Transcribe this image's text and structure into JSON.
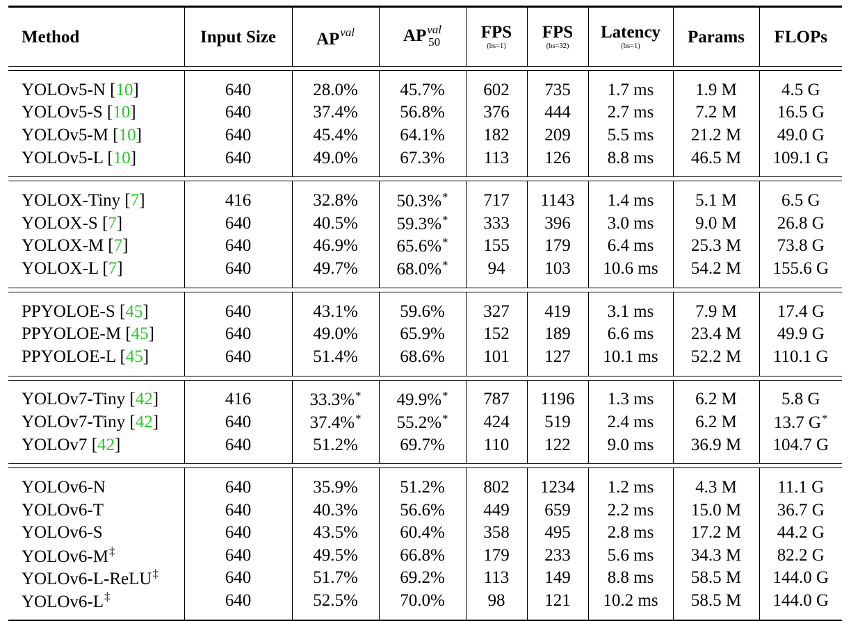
{
  "header": {
    "method": "Method",
    "input_size": "Input Size",
    "ap": "AP",
    "ap_sup": "val",
    "ap50": "AP",
    "ap50_sup": "val",
    "ap50_sub": "50",
    "fps1": "FPS",
    "fps1_sub": "(bs=1)",
    "fps32": "FPS",
    "fps32_sub": "(bs=32)",
    "latency": "Latency",
    "latency_sub": "(bs=1)",
    "params": "Params",
    "flops": "FLOPs"
  },
  "groups": [
    {
      "rows": [
        {
          "name": "YOLOv5-N",
          "ref": "10",
          "mark": "",
          "input": "640",
          "ap": "28.0%",
          "ap_star": "",
          "ap50": "45.7%",
          "ap50_star": "",
          "fps1": "602",
          "fps32": "735",
          "latency": "1.7 ms",
          "params": "1.9 M",
          "flops": "4.5 G",
          "flops_star": ""
        },
        {
          "name": "YOLOv5-S",
          "ref": "10",
          "mark": "",
          "input": "640",
          "ap": "37.4%",
          "ap_star": "",
          "ap50": "56.8%",
          "ap50_star": "",
          "fps1": "376",
          "fps32": "444",
          "latency": "2.7 ms",
          "params": "7.2 M",
          "flops": "16.5 G",
          "flops_star": ""
        },
        {
          "name": "YOLOv5-M",
          "ref": "10",
          "mark": "",
          "input": "640",
          "ap": "45.4%",
          "ap_star": "",
          "ap50": "64.1%",
          "ap50_star": "",
          "fps1": "182",
          "fps32": "209",
          "latency": "5.5 ms",
          "params": "21.2 M",
          "flops": "49.0 G",
          "flops_star": ""
        },
        {
          "name": "YOLOv5-L",
          "ref": "10",
          "mark": "",
          "input": "640",
          "ap": "49.0%",
          "ap_star": "",
          "ap50": "67.3%",
          "ap50_star": "",
          "fps1": "113",
          "fps32": "126",
          "latency": "8.8 ms",
          "params": "46.5 M",
          "flops": "109.1 G",
          "flops_star": ""
        }
      ]
    },
    {
      "rows": [
        {
          "name": "YOLOX-Tiny",
          "ref": "7",
          "mark": "",
          "input": "416",
          "ap": "32.8%",
          "ap_star": "",
          "ap50": "50.3%",
          "ap50_star": "*",
          "fps1": "717",
          "fps32": "1143",
          "latency": "1.4 ms",
          "params": "5.1 M",
          "flops": "6.5 G",
          "flops_star": ""
        },
        {
          "name": "YOLOX-S",
          "ref": "7",
          "mark": "",
          "input": "640",
          "ap": "40.5%",
          "ap_star": "",
          "ap50": "59.3%",
          "ap50_star": "*",
          "fps1": "333",
          "fps32": "396",
          "latency": "3.0 ms",
          "params": "9.0 M",
          "flops": "26.8 G",
          "flops_star": ""
        },
        {
          "name": "YOLOX-M",
          "ref": "7",
          "mark": "",
          "input": "640",
          "ap": "46.9%",
          "ap_star": "",
          "ap50": "65.6%",
          "ap50_star": "*",
          "fps1": "155",
          "fps32": "179",
          "latency": "6.4 ms",
          "params": "25.3 M",
          "flops": "73.8 G",
          "flops_star": ""
        },
        {
          "name": "YOLOX-L",
          "ref": "7",
          "mark": "",
          "input": "640",
          "ap": "49.7%",
          "ap_star": "",
          "ap50": "68.0%",
          "ap50_star": "*",
          "fps1": "94",
          "fps32": "103",
          "latency": "10.6 ms",
          "params": "54.2 M",
          "flops": "155.6 G",
          "flops_star": ""
        }
      ]
    },
    {
      "rows": [
        {
          "name": "PPYOLOE-S",
          "ref": "45",
          "mark": "",
          "input": "640",
          "ap": "43.1%",
          "ap_star": "",
          "ap50": "59.6%",
          "ap50_star": "",
          "fps1": "327",
          "fps32": "419",
          "latency": "3.1 ms",
          "params": "7.9 M",
          "flops": "17.4 G",
          "flops_star": ""
        },
        {
          "name": "PPYOLOE-M",
          "ref": "45",
          "mark": "",
          "input": "640",
          "ap": "49.0%",
          "ap_star": "",
          "ap50": "65.9%",
          "ap50_star": "",
          "fps1": "152",
          "fps32": "189",
          "latency": "6.6 ms",
          "params": "23.4 M",
          "flops": "49.9 G",
          "flops_star": ""
        },
        {
          "name": "PPYOLOE-L",
          "ref": "45",
          "mark": "",
          "input": "640",
          "ap": "51.4%",
          "ap_star": "",
          "ap50": "68.6%",
          "ap50_star": "",
          "fps1": "101",
          "fps32": "127",
          "latency": "10.1 ms",
          "params": "52.2 M",
          "flops": "110.1 G",
          "flops_star": ""
        }
      ]
    },
    {
      "rows": [
        {
          "name": "YOLOv7-Tiny",
          "ref": "42",
          "mark": "",
          "input": "416",
          "ap": "33.3%",
          "ap_star": "*",
          "ap50": "49.9%",
          "ap50_star": "*",
          "fps1": "787",
          "fps32": "1196",
          "latency": "1.3 ms",
          "params": "6.2 M",
          "flops": "5.8 G",
          "flops_star": ""
        },
        {
          "name": "YOLOv7-Tiny",
          "ref": "42",
          "mark": "",
          "input": "640",
          "ap": "37.4%",
          "ap_star": "*",
          "ap50": "55.2%",
          "ap50_star": "*",
          "fps1": "424",
          "fps32": "519",
          "latency": "2.4 ms",
          "params": "6.2 M",
          "flops": "13.7 G",
          "flops_star": "*"
        },
        {
          "name": "YOLOv7",
          "ref": "42",
          "mark": "",
          "input": "640",
          "ap": "51.2%",
          "ap_star": "",
          "ap50": "69.7%",
          "ap50_star": "",
          "fps1": "110",
          "fps32": "122",
          "latency": "9.0 ms",
          "params": "36.9 M",
          "flops": "104.7 G",
          "flops_star": ""
        }
      ]
    },
    {
      "rows": [
        {
          "name": "YOLOv6-N",
          "ref": "",
          "mark": "",
          "input": "640",
          "ap": "35.9%",
          "ap_star": "",
          "ap50": "51.2%",
          "ap50_star": "",
          "fps1": "802",
          "fps32": "1234",
          "latency": "1.2 ms",
          "params": "4.3 M",
          "flops": "11.1 G",
          "flops_star": ""
        },
        {
          "name": "YOLOv6-T",
          "ref": "",
          "mark": "",
          "input": "640",
          "ap": "40.3%",
          "ap_star": "",
          "ap50": "56.6%",
          "ap50_star": "",
          "fps1": "449",
          "fps32": "659",
          "latency": "2.2 ms",
          "params": "15.0 M",
          "flops": "36.7 G",
          "flops_star": ""
        },
        {
          "name": "YOLOv6-S",
          "ref": "",
          "mark": "",
          "input": "640",
          "ap": "43.5%",
          "ap_star": "",
          "ap50": "60.4%",
          "ap50_star": "",
          "fps1": "358",
          "fps32": "495",
          "latency": "2.8 ms",
          "params": "17.2 M",
          "flops": "44.2 G",
          "flops_star": ""
        },
        {
          "name": "YOLOv6-M",
          "ref": "",
          "mark": "‡",
          "input": "640",
          "ap": "49.5%",
          "ap_star": "",
          "ap50": "66.8%",
          "ap50_star": "",
          "fps1": "179",
          "fps32": "233",
          "latency": "5.6 ms",
          "params": "34.3 M",
          "flops": "82.2 G",
          "flops_star": ""
        },
        {
          "name": "YOLOv6-L-ReLU",
          "ref": "",
          "mark": "‡",
          "input": "640",
          "ap": "51.7%",
          "ap_star": "",
          "ap50": "69.2%",
          "ap50_star": "",
          "fps1": "113",
          "fps32": "149",
          "latency": "8.8 ms",
          "params": "58.5 M",
          "flops": "144.0 G",
          "flops_star": ""
        },
        {
          "name": "YOLOv6-L",
          "ref": "",
          "mark": "‡",
          "input": "640",
          "ap": "52.5%",
          "ap_star": "",
          "ap50": "70.0%",
          "ap50_star": "",
          "fps1": "98",
          "fps32": "121",
          "latency": "10.2 ms",
          "params": "58.5 M",
          "flops": "144.0 G",
          "flops_star": ""
        }
      ]
    }
  ],
  "colors": {
    "ref_link": "#22cc22",
    "text": "#000000",
    "background": "#ffffff"
  }
}
